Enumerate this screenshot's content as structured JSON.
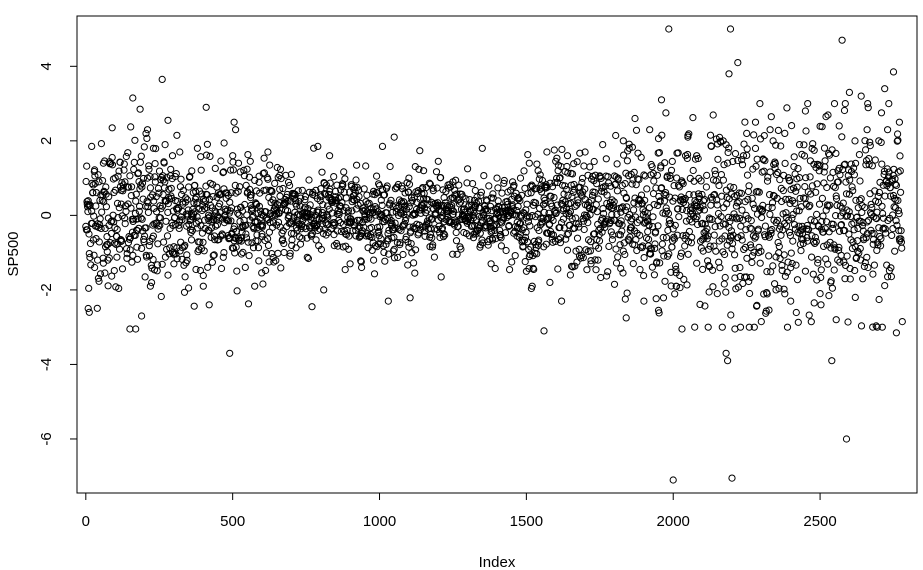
{
  "chart_data": {
    "type": "scatter",
    "title": "",
    "xlabel": "Index",
    "ylabel": "SP500",
    "xlim": [
      -30,
      2830
    ],
    "ylim": [
      -7.45,
      5.35
    ],
    "xticks": [
      0,
      500,
      1000,
      1500,
      2000,
      2500
    ],
    "yticks": [
      -6,
      -4,
      -2,
      0,
      2,
      4
    ],
    "x_tick_labels": [
      "0",
      "500",
      "1000",
      "1500",
      "2000",
      "2500"
    ],
    "y_tick_labels": [
      "-6",
      "-4",
      "-2",
      "0",
      "2",
      "4"
    ],
    "grid": false,
    "marker": "open-circle",
    "n_points": 2780,
    "series": [
      {
        "x": [
          5,
          8,
          12,
          20,
          30,
          45,
          60,
          75,
          90,
          110,
          120,
          150,
          160,
          170,
          185,
          190,
          205,
          210,
          220,
          230,
          240,
          260,
          270,
          280,
          295,
          300,
          310,
          320,
          330,
          350,
          370,
          380,
          400,
          410,
          420,
          430,
          470,
          490,
          500,
          505,
          510,
          520,
          530,
          560,
          575,
          590,
          600,
          620,
          640,
          660,
          700,
          720,
          760,
          770,
          790,
          810,
          830,
          850,
          900,
          920,
          980,
          1000,
          1010,
          1030,
          1050,
          1080,
          1100,
          1120,
          1150,
          1200,
          1210,
          1250,
          1300,
          1320,
          1350,
          1380,
          1400,
          1450,
          1480,
          1500,
          1510,
          1520,
          1540,
          1560,
          1570,
          1580,
          1600,
          1620,
          1640,
          1650,
          1700,
          1720,
          1760,
          1800,
          1830,
          1840,
          1850,
          1870,
          1900,
          1920,
          1950,
          1960,
          1975,
          1985,
          2000,
          2010,
          2030,
          2050,
          2080,
          2100,
          2130,
          2150,
          2170,
          2180,
          2185,
          2190,
          2195,
          2200,
          2210,
          2220,
          2250,
          2280,
          2300,
          2330,
          2350,
          2380,
          2400,
          2430,
          2450,
          2480,
          2500,
          2520,
          2540,
          2555,
          2565,
          2575,
          2585,
          2590,
          2600,
          2620,
          2640,
          2660,
          2700,
          2720,
          2730,
          2750,
          2760,
          2765,
          2770,
          2780
        ],
        "y": [
          0.3,
          -2.5,
          -2.6,
          1.85,
          -1.4,
          0.9,
          1.4,
          -1.2,
          2.35,
          1.05,
          -0.7,
          -3.05,
          3.15,
          -3.05,
          2.85,
          -2.7,
          2.2,
          2.3,
          -1.9,
          1.8,
          0.5,
          3.65,
          1.9,
          2.55,
          1.6,
          -1.3,
          2.15,
          1.7,
          0.1,
          -1.95,
          0.8,
          1.8,
          -1.9,
          2.9,
          -2.4,
          0.2,
          -1.0,
          -3.7,
          1.6,
          2.5,
          2.3,
          1.4,
          -0.6,
          1.45,
          -1.9,
          1.05,
          -0.5,
          1.7,
          -1.25,
          0.7,
          1.1,
          -0.4,
          0.95,
          -2.45,
          1.85,
          -2.0,
          1.6,
          0.5,
          -1.3,
          0.95,
          -1.2,
          0.8,
          1.85,
          -2.3,
          2.1,
          -1.05,
          1.0,
          -1.55,
          1.2,
          1.45,
          -1.65,
          0.9,
          1.25,
          -0.6,
          1.8,
          -1.3,
          1.0,
          -1.25,
          1.0,
          -1.5,
          1.4,
          -1.9,
          1.2,
          -3.1,
          1.7,
          -1.8,
          1.45,
          -2.3,
          1.6,
          -1.6,
          1.7,
          -1.3,
          1.9,
          -1.85,
          2.0,
          -2.75,
          1.8,
          2.6,
          -2.3,
          2.3,
          -2.55,
          3.1,
          2.75,
          5.0,
          -7.1,
          -1.9,
          -3.05,
          2.1,
          1.6,
          -1.45,
          1.85,
          -2.1,
          2.0,
          -3.7,
          -3.9,
          3.8,
          5.0,
          -7.05,
          -3.05,
          4.1,
          2.2,
          2.5,
          -2.85,
          2.3,
          -2.0,
          2.2,
          -2.3,
          1.9,
          2.8,
          -2.35,
          -2.1,
          2.65,
          -3.9,
          -2.8,
          2.4,
          4.7,
          -1.7,
          -6.0,
          3.3,
          -2.2,
          3.2,
          2.3,
          2.0,
          3.4,
          2.3,
          3.85,
          -3.15,
          0.4,
          2.5,
          -2.85
        ]
      }
    ]
  }
}
